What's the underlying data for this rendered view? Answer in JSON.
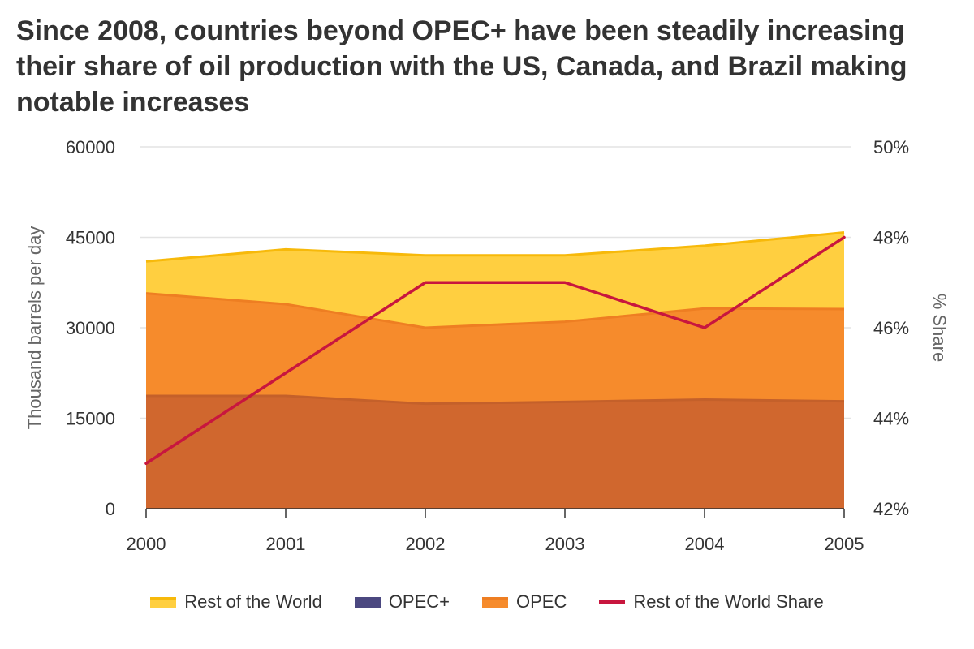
{
  "chart_data": {
    "type": "area",
    "title": "Since 2008, countries beyond OPEC+ have been steadily increasing their share of oil production with the US, Canada, and Brazil making notable increases",
    "x": [
      "2000",
      "2001",
      "2002",
      "2003",
      "2004",
      "2005"
    ],
    "y_left": {
      "label": "Thousand barrels per day",
      "lim": [
        0,
        60000
      ],
      "ticks": [
        "0",
        "15000",
        "30000",
        "45000",
        "60000"
      ]
    },
    "y_right": {
      "label": "% Share",
      "lim": [
        42,
        50
      ],
      "ticks": [
        "42%",
        "44%",
        "46%",
        "48%",
        "50%"
      ]
    },
    "series": [
      {
        "name": "Rest of the World",
        "type": "area",
        "values": [
          41000,
          43000,
          42000,
          42000,
          43600,
          45800
        ],
        "color": "#FFCF40",
        "line_color": "#F7B90A"
      },
      {
        "name": "OPEC+",
        "type": "area",
        "values": [
          18700,
          18700,
          17400,
          17700,
          18100,
          17800
        ],
        "color": "#D0672E",
        "line_color": "#C4602A",
        "legend_color": "#4B4880"
      },
      {
        "name": "OPEC",
        "type": "area",
        "values": [
          35700,
          33900,
          30000,
          31000,
          33200,
          33100
        ],
        "color": "#F68B2C",
        "line_color": "#EE7E22"
      },
      {
        "name": "Rest of the World Share",
        "type": "line",
        "axis": "right",
        "values": [
          43.0,
          45.0,
          47.0,
          47.0,
          46.0,
          48.0
        ],
        "color": "#C8163E"
      }
    ],
    "grid": true,
    "legend_position": "bottom"
  }
}
